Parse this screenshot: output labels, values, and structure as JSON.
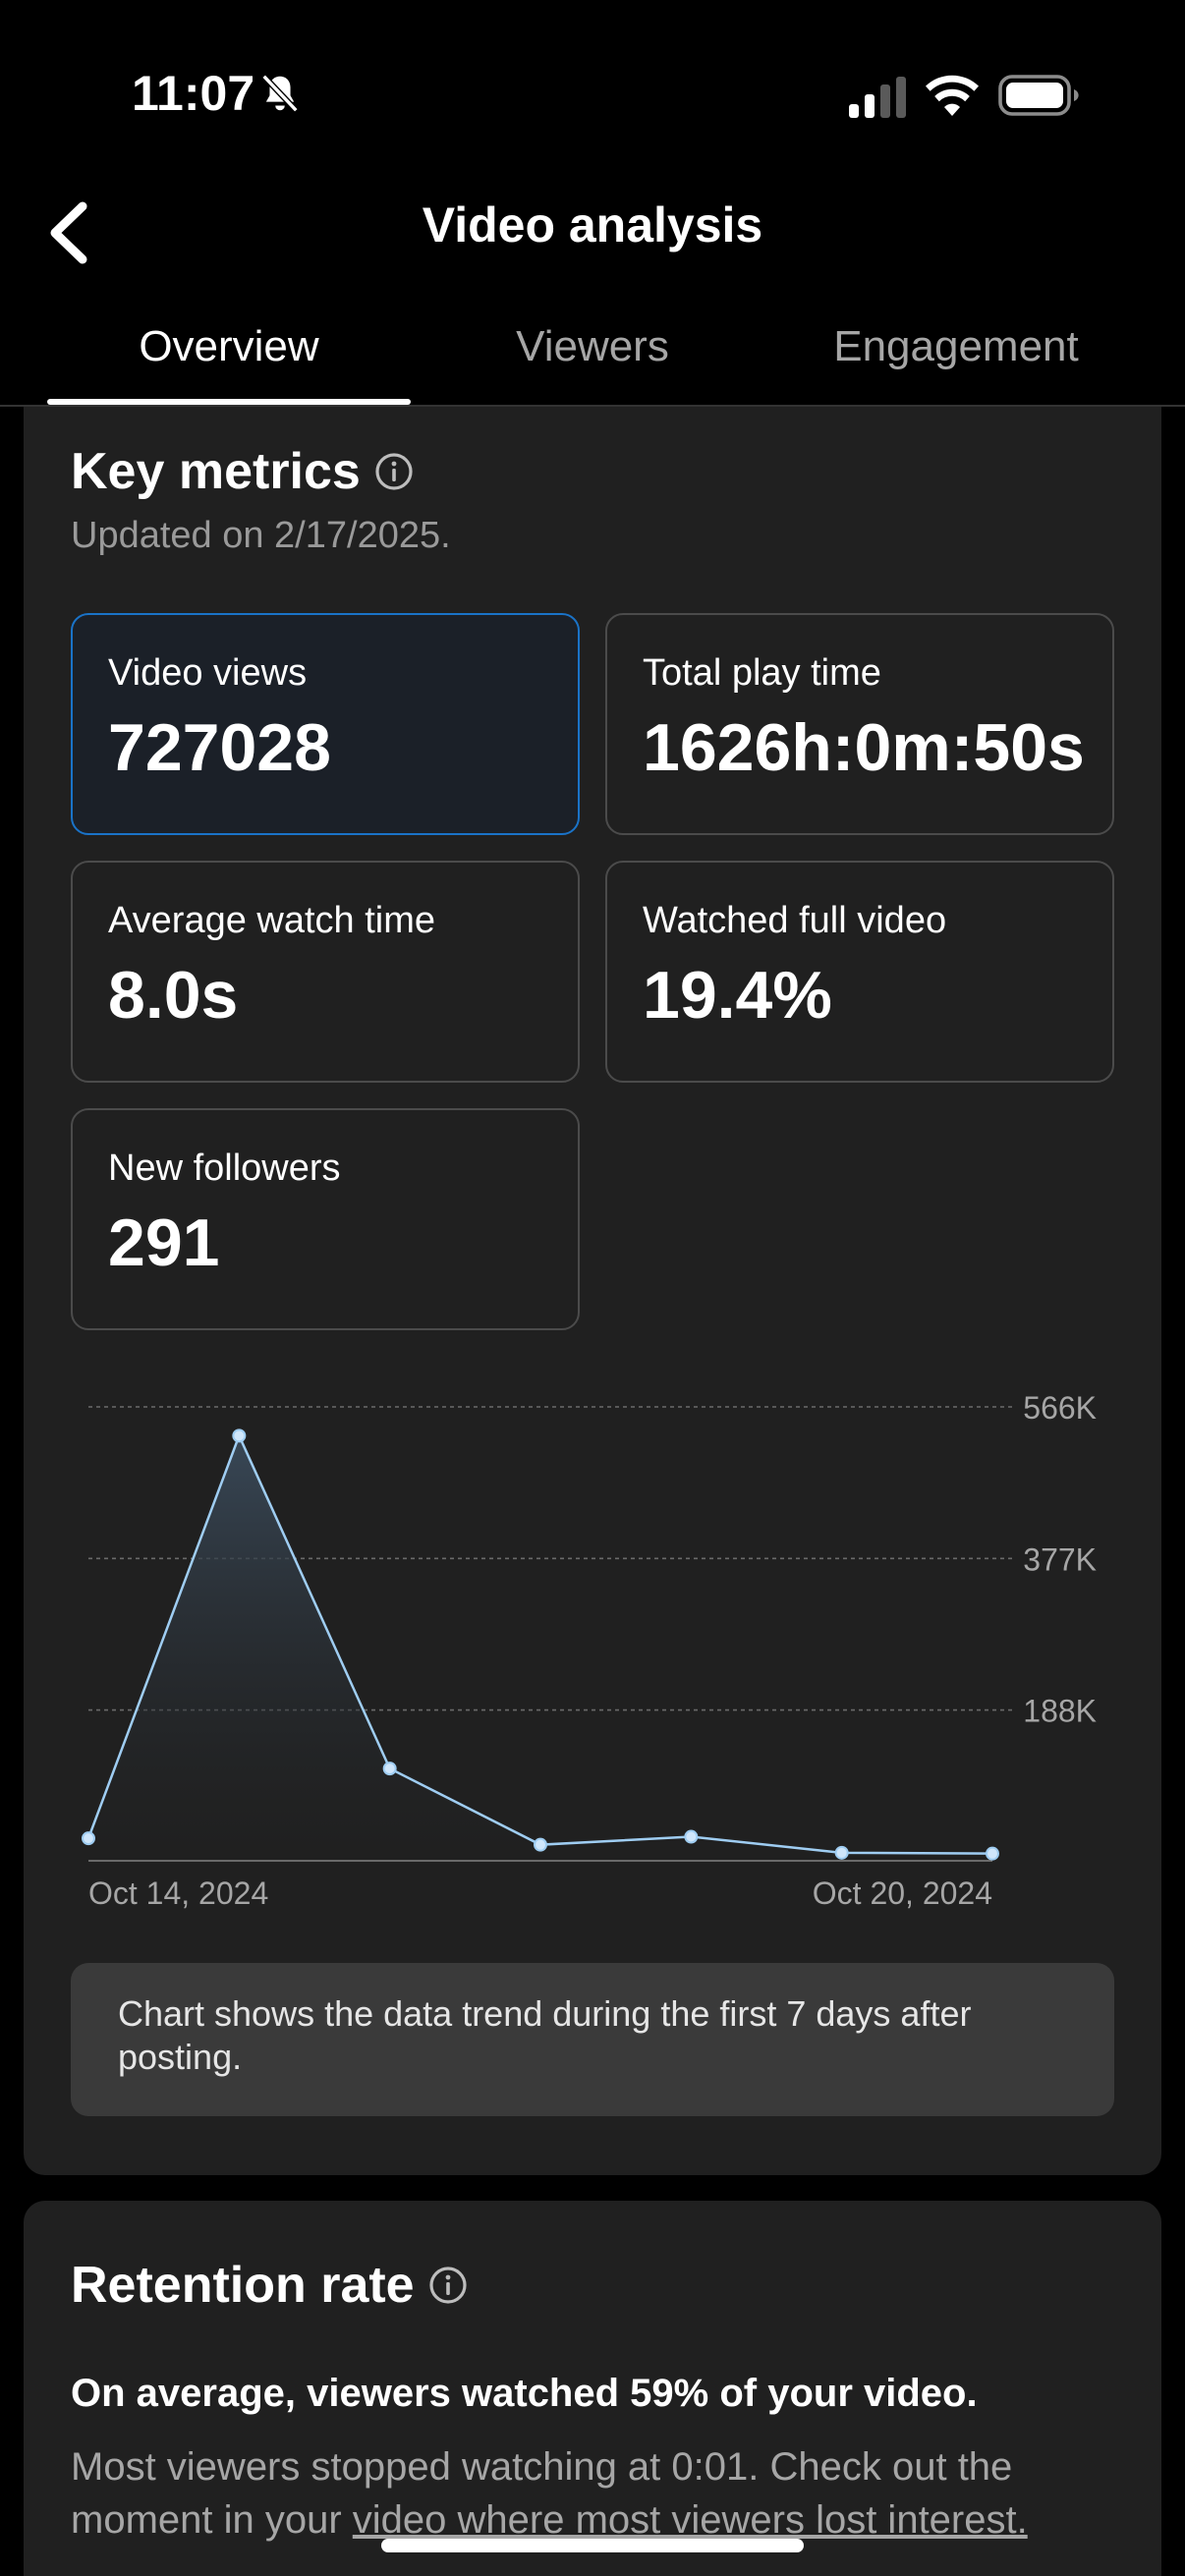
{
  "status_bar": {
    "time": "11:07",
    "icons": [
      "bell-slash-icon",
      "signal-icon",
      "wifi-icon",
      "battery-icon"
    ]
  },
  "nav": {
    "title": "Video analysis",
    "back_icon": "chevron-left-icon"
  },
  "tabs": [
    {
      "label": "Overview",
      "active": true
    },
    {
      "label": "Viewers",
      "active": false
    },
    {
      "label": "Engagement",
      "active": false
    }
  ],
  "key_metrics": {
    "title": "Key metrics",
    "updated": "Updated on 2/17/2025.",
    "metrics": [
      {
        "label": "Video views",
        "value": "727028",
        "selected": true
      },
      {
        "label": "Total play time",
        "value": "1626h:0m:50s",
        "selected": false
      },
      {
        "label": "Average watch time",
        "value": "8.0s",
        "selected": false
      },
      {
        "label": "Watched full video",
        "value": "19.4%",
        "selected": false
      },
      {
        "label": "New followers",
        "value": "291",
        "selected": false
      }
    ],
    "note": "Chart shows the data trend during the first 7 days after posting."
  },
  "chart_data": {
    "type": "area",
    "x": [
      "Oct 14, 2024",
      "Oct 15, 2024",
      "Oct 16, 2024",
      "Oct 17, 2024",
      "Oct 18, 2024",
      "Oct 19, 2024",
      "Oct 20, 2024"
    ],
    "x_tick_labels": [
      "Oct 14, 2024",
      "Oct 20, 2024"
    ],
    "values": [
      28000,
      530000,
      115000,
      20000,
      30000,
      10000,
      9000
    ],
    "y_ticks": [
      188000,
      377000,
      566000
    ],
    "y_tick_labels": [
      "188K",
      "377K",
      "566K"
    ],
    "ylim": [
      0,
      566000
    ],
    "grid": true,
    "colors": {
      "line": "#9fcdf2",
      "fill_top": "#3a4a5a",
      "grid": "#6a6a6a"
    }
  },
  "retention": {
    "title": "Retention rate",
    "headline": "On average, viewers watched 59% of your video.",
    "body_before": "Most viewers stopped watching at 0:01. Check out the moment in your ",
    "body_link": "video where most viewers lost interest."
  }
}
